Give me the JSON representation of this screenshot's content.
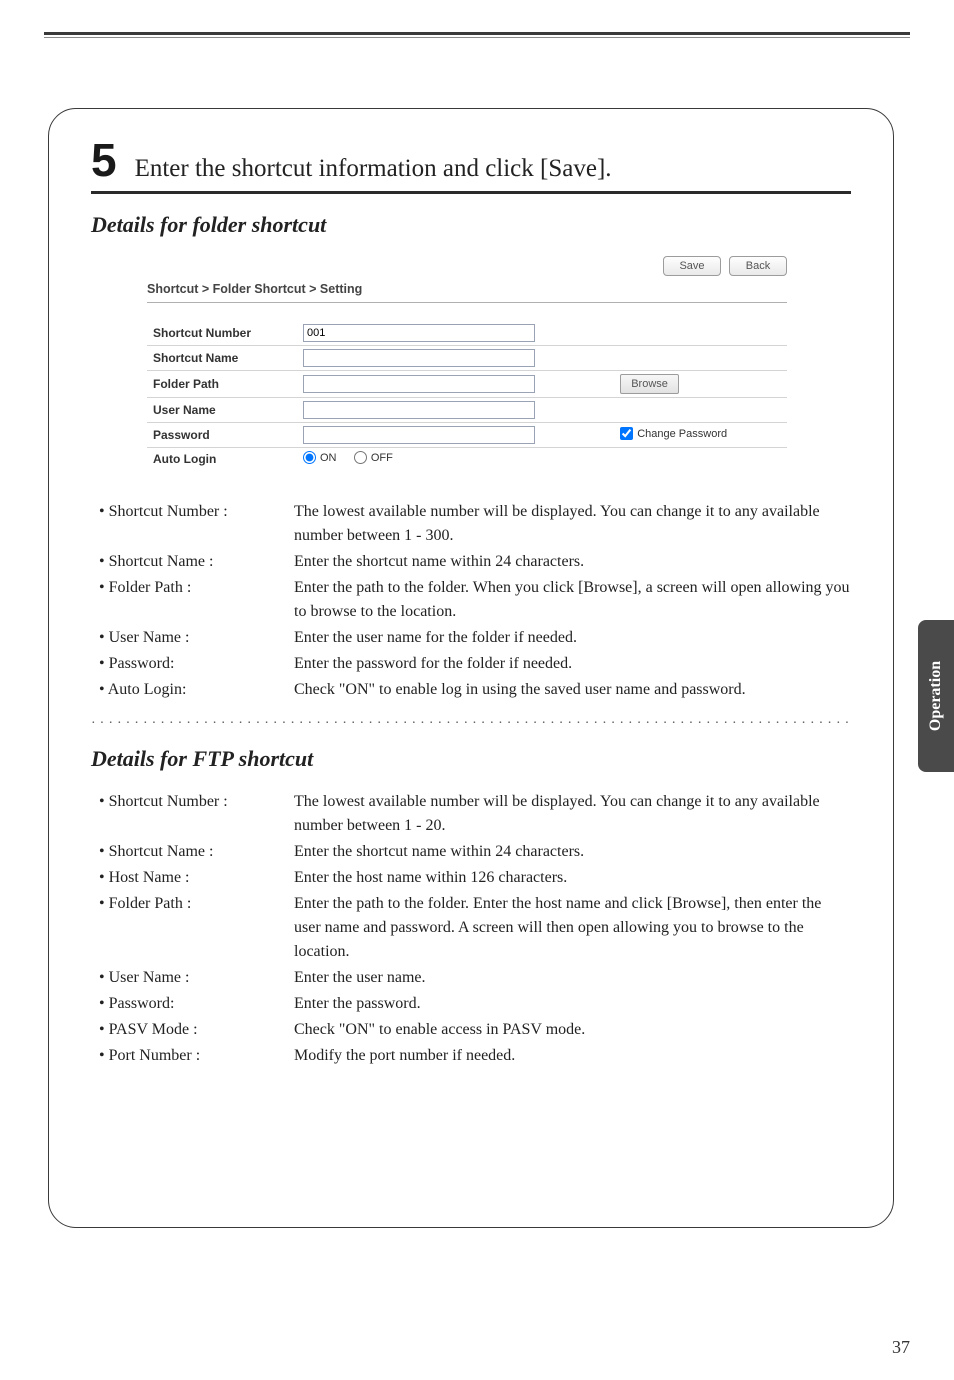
{
  "page": {
    "number": "37",
    "side_tab": "Operation"
  },
  "step": {
    "number": "5",
    "title": "Enter the shortcut information and click [Save]."
  },
  "folder_section": {
    "heading": "Details for folder shortcut",
    "buttons": {
      "save": "Save",
      "back": "Back"
    },
    "breadcrumb": "Shortcut > Folder Shortcut > Setting",
    "fields": {
      "shortcut_number": {
        "label": "Shortcut Number",
        "value": "001"
      },
      "shortcut_name": {
        "label": "Shortcut Name",
        "value": ""
      },
      "folder_path": {
        "label": "Folder Path",
        "value": "",
        "browse": "Browse"
      },
      "user_name": {
        "label": "User Name",
        "value": ""
      },
      "password": {
        "label": "Password",
        "value": "",
        "change_pw": "Change Password"
      },
      "auto_login": {
        "label": "Auto Login",
        "on": "ON",
        "off": "OFF"
      }
    },
    "desc": [
      {
        "term": "Shortcut Number :",
        "def": "The lowest available number will be displayed.  You can change it to any available number between 1 - 300."
      },
      {
        "term": "Shortcut Name :",
        "def": "Enter the shortcut name within 24 characters."
      },
      {
        "term": "Folder Path :",
        "def": "Enter the path to the folder.  When you click [Browse], a screen will open allowing you to browse to the location."
      },
      {
        "term": "User Name :",
        "def": "Enter the user name for the folder if needed."
      },
      {
        "term": "Password:",
        "def": "Enter the password for the folder if needed."
      },
      {
        "term": "Auto Login:",
        "def": "Check \"ON\" to enable log in using the saved user name and password."
      }
    ]
  },
  "ftp_section": {
    "heading": "Details for FTP shortcut",
    "desc": [
      {
        "term": "Shortcut Number :",
        "def": "The lowest available number will be displayed.  You can change it to any available number between 1 - 20."
      },
      {
        "term": "Shortcut Name :",
        "def": "Enter the shortcut name within 24 characters."
      },
      {
        "term": "Host Name :",
        "def": "Enter the host name within 126 characters."
      },
      {
        "term": "Folder Path :",
        "def": "Enter the path to the folder.  Enter the host name and click [Browse], then enter the user name and password.  A screen will then open allowing you to browse to the location."
      },
      {
        "term": "User Name :",
        "def": "Enter the user name."
      },
      {
        "term": "Password:",
        "def": "Enter the password."
      },
      {
        "term": "PASV Mode :",
        "def": "Check \"ON\" to enable access in PASV mode."
      },
      {
        "term": "Port Number :",
        "def": "Modify the port number if needed."
      }
    ]
  }
}
